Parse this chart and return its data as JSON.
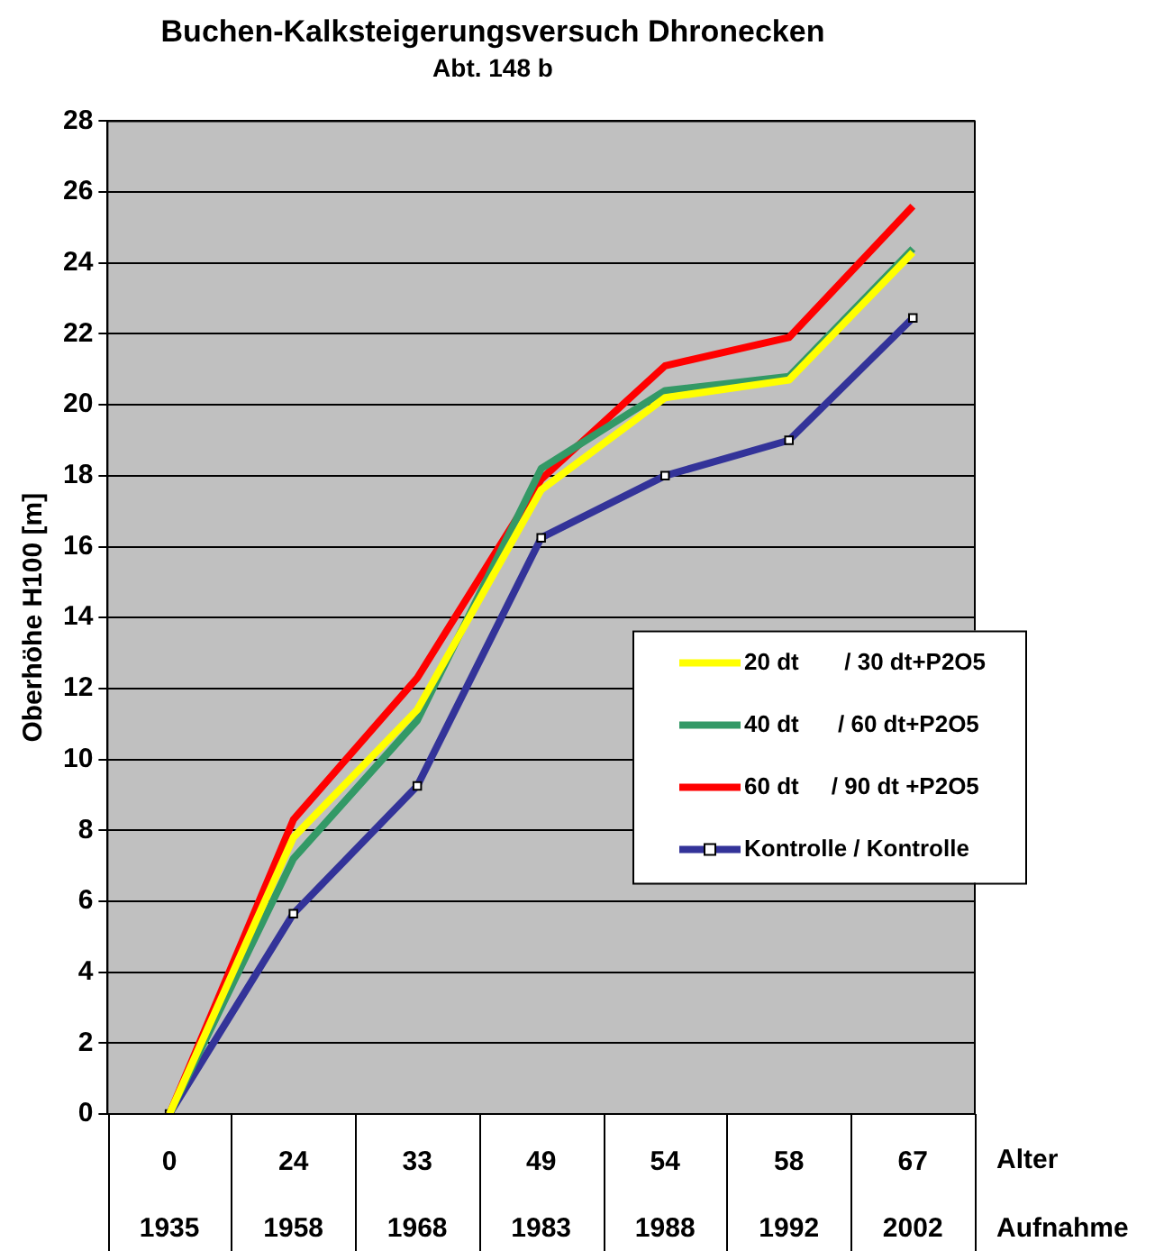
{
  "chart_data": {
    "type": "line",
    "title": "Buchen-Kalksteigerungsversuch Dhronecken",
    "subtitle": "Abt. 148 b",
    "ylabel": "Oberhöhe H100 [m]",
    "xlabel": "Alter",
    "categories": [
      "0",
      "24",
      "33",
      "49",
      "54",
      "58",
      "67"
    ],
    "series": [
      {
        "name": "20 dt       / 30 dt+P2O5",
        "color": "#ffff00",
        "marker": "none",
        "values": [
          0,
          7.8,
          11.4,
          17.6,
          20.2,
          20.7,
          24.3
        ]
      },
      {
        "name": "40 dt      / 60 dt+P2O5",
        "color": "#339966",
        "marker": "none",
        "values": [
          0,
          7.2,
          11.1,
          18.2,
          20.4,
          20.8,
          24.4
        ]
      },
      {
        "name": "60 dt     / 90 dt +P2O5",
        "color": "#ff0000",
        "marker": "none",
        "values": [
          0,
          8.3,
          12.3,
          17.9,
          21.1,
          21.9,
          25.6
        ]
      },
      {
        "name": "Kontrolle / Kontrolle",
        "color": "#333399",
        "marker": "square",
        "values": [
          0,
          5.65,
          9.25,
          16.25,
          18.0,
          19.0,
          22.45
        ]
      }
    ],
    "ylim": [
      0,
      28
    ],
    "yticks": [
      0,
      2,
      4,
      6,
      8,
      10,
      12,
      14,
      16,
      18,
      20,
      22,
      24,
      26,
      28
    ],
    "grid": "y",
    "legend": "right",
    "annotations": [
      "Aufnahme",
      "1935",
      "1958",
      "1968",
      "1983",
      "1988",
      "1992",
      "2002"
    ]
  }
}
